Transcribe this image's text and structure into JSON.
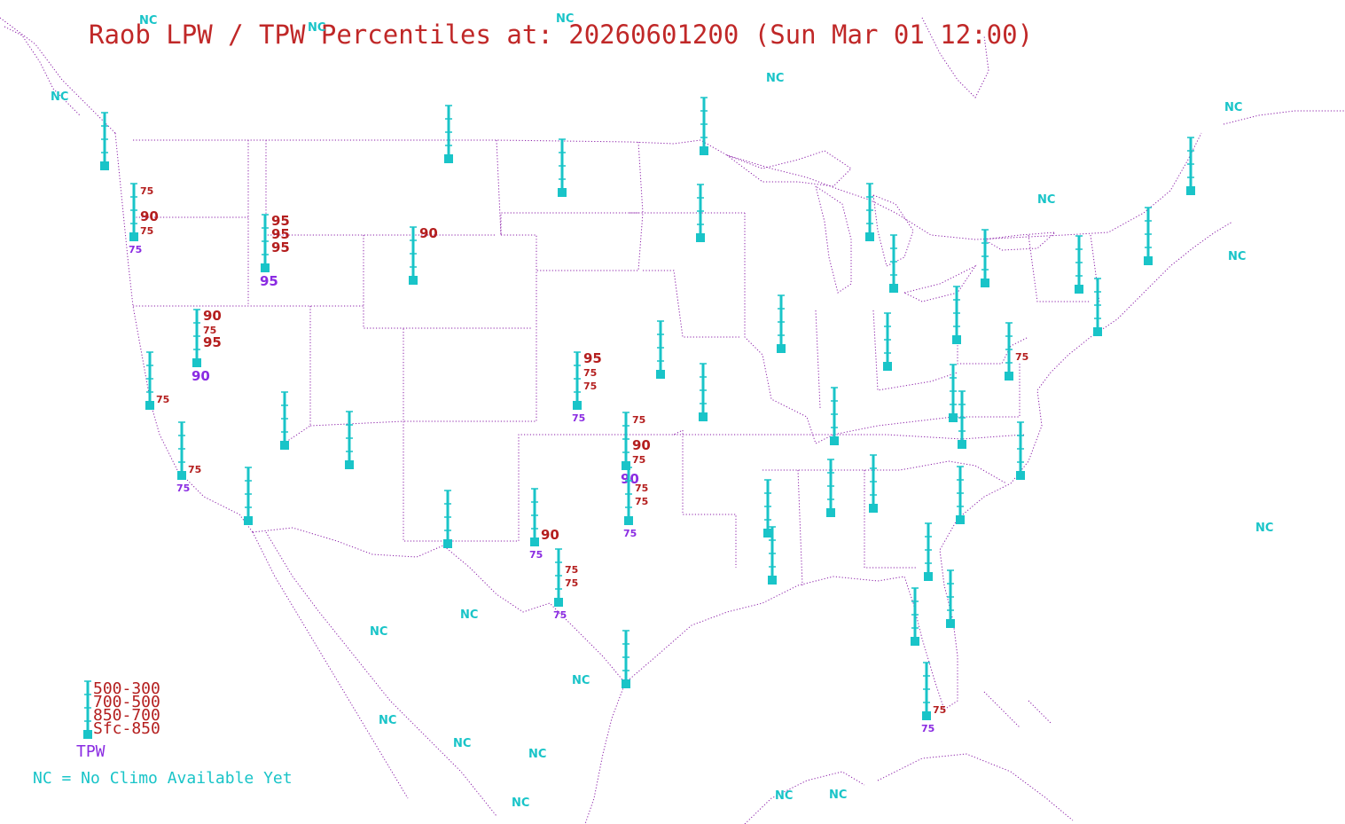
{
  "title": "Raob LPW / TPW Percentiles at: 20260601200 (Sun Mar 01 12:00)",
  "colors": {
    "title": "#c02828",
    "station": "#19c4c8",
    "lpw_label": "#b41e1e",
    "tpw_label": "#8a2be2",
    "borders": "#8b1fa8",
    "nc": "#19c4c8",
    "background": "#ffffff"
  },
  "legend": {
    "layers": [
      "500-300",
      "700-500",
      "850-700",
      "Sfc-850"
    ],
    "tpw": "TPW",
    "nc_note": "NC = No Climo Available Yet"
  },
  "nc_label": "NC",
  "stations": [
    {
      "id": "s01",
      "labels": []
    },
    {
      "id": "s02",
      "labels": [
        {
          "layer": "500-300",
          "value": "75"
        },
        {
          "layer": "850-700",
          "value": "90"
        },
        {
          "layer": "Sfc-850",
          "value": "75"
        }
      ],
      "tpw": "75"
    },
    {
      "id": "s03",
      "labels": [
        {
          "layer": "500-300",
          "value": "95"
        },
        {
          "layer": "700-500",
          "value": "95"
        },
        {
          "layer": "850-700",
          "value": "95"
        }
      ],
      "tpw": "95"
    },
    {
      "id": "s04",
      "labels": []
    },
    {
      "id": "s05",
      "labels": [
        {
          "layer": "500-300",
          "value": "90"
        }
      ]
    },
    {
      "id": "s06",
      "labels": []
    },
    {
      "id": "s07",
      "labels": []
    },
    {
      "id": "s08",
      "labels": []
    },
    {
      "id": "s09",
      "labels": [
        {
          "layer": "500-300",
          "value": "90"
        },
        {
          "layer": "700-500",
          "value": "75"
        },
        {
          "layer": "850-700",
          "value": "95"
        }
      ],
      "tpw": "90"
    },
    {
      "id": "s10",
      "labels": [
        {
          "layer": "Sfc-850",
          "value": "75"
        }
      ]
    },
    {
      "id": "s11",
      "labels": [
        {
          "layer": "Sfc-850",
          "value": "75"
        }
      ],
      "tpw": "75"
    },
    {
      "id": "s12",
      "labels": []
    },
    {
      "id": "s13",
      "labels": []
    },
    {
      "id": "s14",
      "labels": []
    },
    {
      "id": "s15",
      "labels": [
        {
          "layer": "500-300",
          "value": "95"
        },
        {
          "layer": "700-500",
          "value": "75"
        },
        {
          "layer": "850-700",
          "value": "75"
        }
      ],
      "tpw": "75"
    },
    {
      "id": "s16",
      "labels": []
    },
    {
      "id": "s17",
      "labels": []
    },
    {
      "id": "s18",
      "labels": [
        {
          "layer": "500-300",
          "value": "75"
        },
        {
          "layer": "850-700",
          "value": "90"
        },
        {
          "layer": "Sfc-850",
          "value": "75"
        }
      ],
      "tpw": "90"
    },
    {
      "id": "s19",
      "labels": [
        {
          "layer": "700-500",
          "value": "75"
        },
        {
          "layer": "850-700",
          "value": "75"
        }
      ],
      "tpw": "75"
    },
    {
      "id": "s20",
      "labels": []
    },
    {
      "id": "s21",
      "labels": [
        {
          "layer": "Sfc-850",
          "value": "90"
        }
      ],
      "tpw": "75"
    },
    {
      "id": "s22",
      "labels": [
        {
          "layer": "700-500",
          "value": "75"
        },
        {
          "layer": "850-700",
          "value": "75"
        }
      ],
      "tpw": "75"
    },
    {
      "id": "s23",
      "labels": []
    },
    {
      "id": "s24",
      "labels": []
    },
    {
      "id": "s25",
      "labels": []
    },
    {
      "id": "s26",
      "labels": []
    },
    {
      "id": "s27",
      "labels": []
    },
    {
      "id": "s28",
      "labels": []
    },
    {
      "id": "s29",
      "labels": []
    },
    {
      "id": "s30",
      "labels": []
    },
    {
      "id": "s31",
      "labels": []
    },
    {
      "id": "s32",
      "labels": []
    },
    {
      "id": "s33",
      "labels": []
    },
    {
      "id": "s34",
      "labels": []
    },
    {
      "id": "s35",
      "labels": []
    },
    {
      "id": "s36",
      "labels": [
        {
          "layer": "850-700",
          "value": "75"
        }
      ]
    },
    {
      "id": "s37",
      "labels": []
    },
    {
      "id": "s38",
      "labels": []
    },
    {
      "id": "s39",
      "labels": []
    },
    {
      "id": "s40",
      "labels": []
    },
    {
      "id": "s41",
      "labels": []
    },
    {
      "id": "s42",
      "labels": []
    },
    {
      "id": "s43",
      "labels": []
    },
    {
      "id": "s44",
      "labels": []
    },
    {
      "id": "s45",
      "labels": []
    },
    {
      "id": "s46",
      "labels": []
    },
    {
      "id": "s47",
      "labels": []
    },
    {
      "id": "s48",
      "labels": []
    },
    {
      "id": "s49",
      "labels": []
    },
    {
      "id": "s50",
      "labels": []
    },
    {
      "id": "s51",
      "labels": []
    },
    {
      "id": "s52",
      "labels": []
    },
    {
      "id": "s53",
      "labels": []
    },
    {
      "id": "s54",
      "labels": [
        {
          "layer": "Sfc-850",
          "value": "75"
        }
      ],
      "tpw": "75"
    }
  ]
}
